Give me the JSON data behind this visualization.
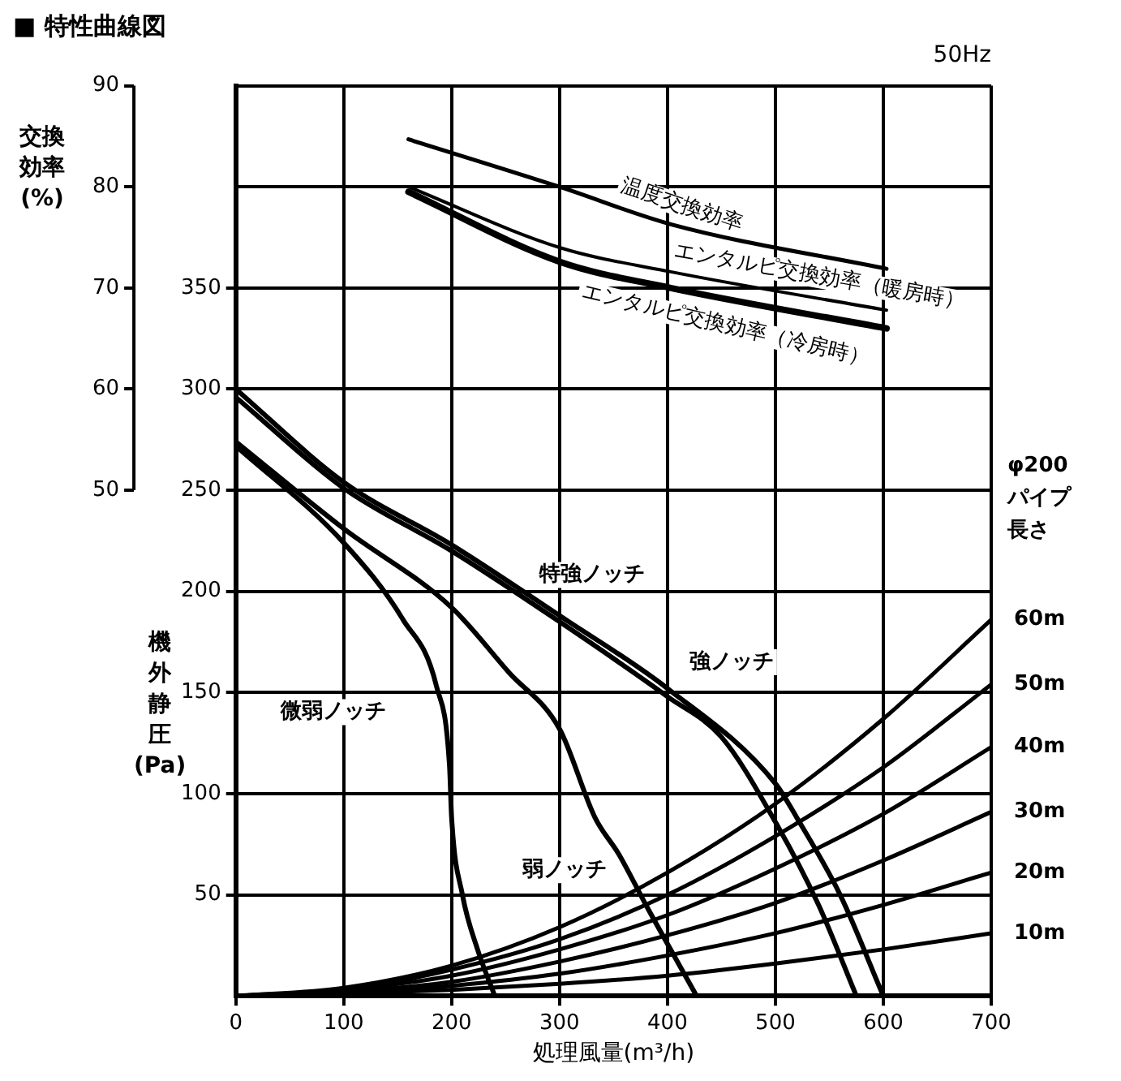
{
  "chart_data": {
    "type": "line",
    "title": "■ 特性曲線図",
    "subtitle": "50Hz",
    "xlabel": "処理風量(m³/h)",
    "ylabel": "機外静圧(Pa)",
    "y2label": "交換効率(%)",
    "xlim": [
      0,
      700
    ],
    "xticks": [
      0,
      100,
      200,
      300,
      400,
      500,
      600,
      700
    ],
    "ylim": [
      0,
      450
    ],
    "yticks": [
      50,
      100,
      150,
      200,
      250,
      300,
      350
    ],
    "y2lim": [
      0,
      90
    ],
    "y2ticks": [
      50,
      60,
      70,
      80,
      90
    ],
    "grid": true,
    "legend": false,
    "annotations": [
      "φ200",
      "パイプ",
      "長さ"
    ],
    "series": [
      {
        "name": "特強ノッチ",
        "color": "#000000",
        "x": [
          0,
          100,
          200,
          300,
          400,
          500,
          520,
          560,
          600
        ],
        "values": [
          300,
          254,
          223,
          188,
          152,
          105,
          88,
          50,
          0
        ]
      },
      {
        "name": "強ノッチ",
        "color": "#000000",
        "x": [
          0,
          100,
          200,
          300,
          400,
          450,
          500,
          540,
          575
        ],
        "values": [
          296,
          251,
          220,
          185,
          148,
          128,
          86,
          45,
          0
        ]
      },
      {
        "name": "弱ノッチ",
        "color": "#000000",
        "x": [
          0,
          100,
          200,
          253,
          300,
          333,
          355,
          380,
          427
        ],
        "values": [
          274,
          231,
          192,
          160,
          132,
          88,
          70,
          45,
          0
        ]
      },
      {
        "name": "微弱ノッチ",
        "color": "#000000",
        "x": [
          0,
          100,
          155,
          186,
          198,
          200,
          210,
          224,
          240
        ],
        "values": [
          272,
          224,
          186,
          153,
          114,
          88,
          50,
          23,
          0
        ]
      },
      {
        "name": "温度交換効率",
        "color": "#000000",
        "axis": "y2",
        "x": [
          160,
          300,
          403,
          603
        ],
        "values": [
          84.7,
          80,
          76.3,
          71.9
        ]
      },
      {
        "name": "エンタルピ交換効率（暖房時）",
        "color": "#000000",
        "axis": "y2",
        "x": [
          160,
          300,
          403,
          603
        ],
        "values": [
          80,
          74,
          71.6,
          67.8
        ]
      },
      {
        "name": "エンタルピ交換効率（冷房時）",
        "color": "#000000",
        "axis": "y2",
        "x": [
          160,
          300,
          403,
          603
        ],
        "values": [
          79.5,
          72.6,
          70,
          66
        ]
      },
      {
        "name": "60m",
        "color": "#000000",
        "x": [
          0,
          100,
          200,
          300,
          400,
          500,
          600,
          700
        ],
        "values": [
          0,
          4,
          15,
          34,
          61,
          95,
          137,
          186
        ]
      },
      {
        "name": "50m",
        "color": "#000000",
        "x": [
          0,
          100,
          200,
          300,
          400,
          500,
          600,
          700
        ],
        "values": [
          0,
          3,
          13,
          28,
          50,
          79,
          113,
          154
        ]
      },
      {
        "name": "40m",
        "color": "#000000",
        "x": [
          0,
          100,
          200,
          300,
          400,
          500,
          600,
          700
        ],
        "values": [
          0,
          3,
          10,
          23,
          40,
          63,
          90,
          123
        ]
      },
      {
        "name": "30m",
        "color": "#000000",
        "x": [
          0,
          100,
          200,
          300,
          400,
          500,
          600,
          700
        ],
        "values": [
          0,
          2,
          7,
          17,
          30,
          46,
          67,
          91
        ]
      },
      {
        "name": "20m",
        "color": "#000000",
        "x": [
          0,
          100,
          200,
          300,
          400,
          500,
          600,
          700
        ],
        "values": [
          0,
          1,
          5,
          11,
          20,
          31,
          45,
          61
        ]
      },
      {
        "name": "10m",
        "color": "#000000",
        "x": [
          0,
          100,
          200,
          300,
          400,
          500,
          600,
          700
        ],
        "values": [
          0,
          1,
          3,
          6,
          10,
          16,
          23,
          31
        ]
      }
    ]
  }
}
